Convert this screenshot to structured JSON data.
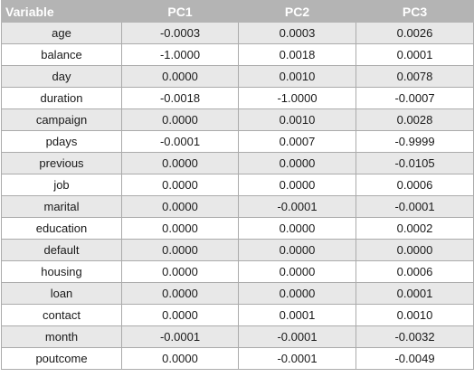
{
  "table": {
    "headers": [
      "Variable",
      "PC1",
      "PC2",
      "PC3"
    ],
    "rows": [
      [
        "age",
        "-0.0003",
        "0.0003",
        "0.0026"
      ],
      [
        "balance",
        "-1.0000",
        "0.0018",
        "0.0001"
      ],
      [
        "day",
        "0.0000",
        "0.0010",
        "0.0078"
      ],
      [
        "duration",
        "-0.0018",
        "-1.0000",
        "-0.0007"
      ],
      [
        "campaign",
        "0.0000",
        "0.0010",
        "0.0028"
      ],
      [
        "pdays",
        "-0.0001",
        "0.0007",
        "-0.9999"
      ],
      [
        "previous",
        "0.0000",
        "0.0000",
        "-0.0105"
      ],
      [
        "job",
        "0.0000",
        "0.0000",
        "0.0006"
      ],
      [
        "marital",
        "0.0000",
        "-0.0001",
        "-0.0001"
      ],
      [
        "education",
        "0.0000",
        "0.0000",
        "0.0002"
      ],
      [
        "default",
        "0.0000",
        "0.0000",
        "0.0000"
      ],
      [
        "housing",
        "0.0000",
        "0.0000",
        "0.0006"
      ],
      [
        "loan",
        "0.0000",
        "0.0000",
        "0.0001"
      ],
      [
        "contact",
        "0.0000",
        "0.0001",
        "0.0010"
      ],
      [
        "month",
        "-0.0001",
        "-0.0001",
        "-0.0032"
      ],
      [
        "poutcome",
        "0.0000",
        "-0.0001",
        "-0.0049"
      ]
    ]
  }
}
